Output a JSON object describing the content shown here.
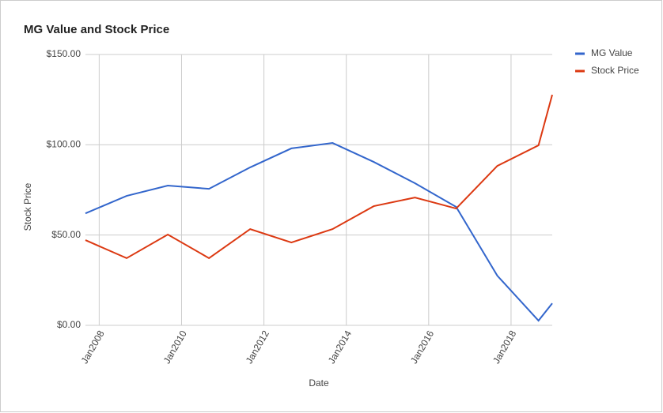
{
  "chart_data": {
    "type": "line",
    "title": "MG Value and Stock Price",
    "x_label": "Date",
    "y_label": "Stock Price",
    "x": [
      "2007-09",
      "2008-09",
      "2009-09",
      "2010-09",
      "2011-09",
      "2012-09",
      "2013-09",
      "2014-09",
      "2015-09",
      "2016-09",
      "2017-09",
      "2018-09",
      "2019-01"
    ],
    "xlim": [
      "2007-09",
      "2019-01"
    ],
    "xticks": [
      {
        "value": "2008-01",
        "label": "Jan2008"
      },
      {
        "value": "2010-01",
        "label": "Jan2010"
      },
      {
        "value": "2012-01",
        "label": "Jan2012"
      },
      {
        "value": "2014-01",
        "label": "Jan2014"
      },
      {
        "value": "2016-01",
        "label": "Jan2016"
      },
      {
        "value": "2018-01",
        "label": "Jan2018"
      }
    ],
    "ylim": [
      0,
      150
    ],
    "yticks": [
      {
        "value": 0,
        "label": "$0.00"
      },
      {
        "value": 50,
        "label": "$50.00"
      },
      {
        "value": 100,
        "label": "$100.00"
      },
      {
        "value": 150,
        "label": "$150.00"
      }
    ],
    "grid": true,
    "legend_position": "right",
    "series": [
      {
        "name": "MG Value",
        "color": "#3366cc",
        "values": [
          62,
          71.7,
          77.4,
          75.6,
          87.5,
          98,
          101,
          90.5,
          78.7,
          65.6,
          27.5,
          2.6,
          12.2
        ]
      },
      {
        "name": "Stock Price",
        "color": "#dc3912",
        "values": [
          47.2,
          37.2,
          50.3,
          37.2,
          53.3,
          45.9,
          53.3,
          66,
          70.8,
          64.7,
          88.3,
          99.7,
          127.7
        ]
      }
    ]
  }
}
